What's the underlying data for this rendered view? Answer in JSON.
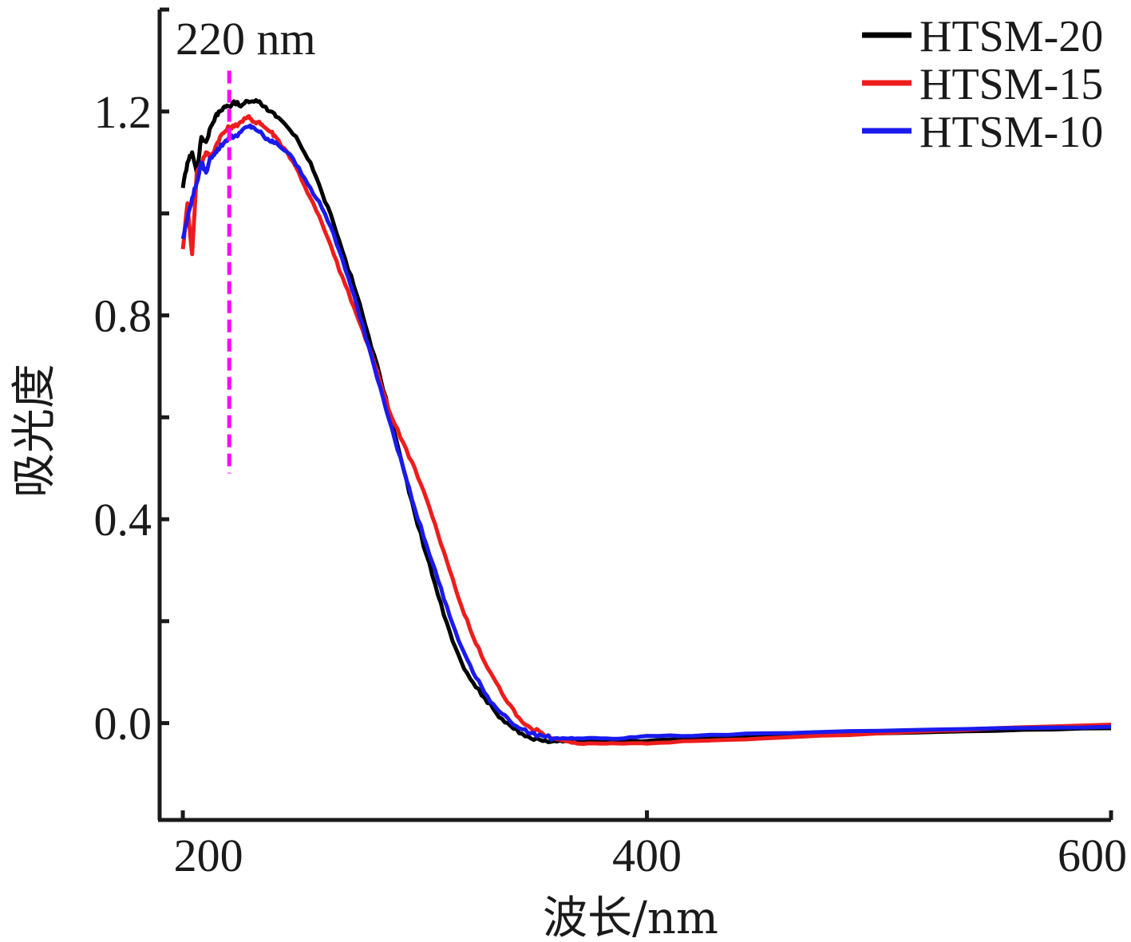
{
  "chart_data": {
    "type": "line",
    "title": "",
    "xlabel": "波长/nm",
    "ylabel": "吸光度",
    "xlim": [
      190,
      600
    ],
    "ylim": [
      -0.19,
      1.4
    ],
    "x_ticks": [
      200,
      400,
      600
    ],
    "x_minor_ticks": [],
    "y_ticks": [
      0.0,
      0.4,
      0.8,
      1.2
    ],
    "y_minor_ticks": [
      -0.2,
      0.2,
      0.6,
      1.0
    ],
    "x_tick_labels": [
      "200",
      "400",
      "600"
    ],
    "y_tick_labels": [
      "0.0",
      "0.4",
      "0.8",
      "1.2"
    ],
    "grid": false,
    "legend_position": "top-right",
    "annotations": [
      {
        "text": "220 nm",
        "x": 220,
        "y_start": 0.49,
        "y_end": 1.28,
        "color": "#ff00ff",
        "style": "dashed"
      }
    ],
    "series": [
      {
        "name": "HTSM-20",
        "color": "#000000",
        "x": [
          200,
          202,
          204,
          206,
          208,
          210,
          212,
          214,
          216,
          218,
          220,
          222,
          225,
          228,
          230,
          233,
          235,
          238,
          240,
          245,
          250,
          255,
          260,
          265,
          270,
          275,
          280,
          285,
          290,
          295,
          300,
          305,
          310,
          315,
          320,
          325,
          330,
          335,
          340,
          345,
          350,
          355,
          360,
          365,
          370,
          380,
          390,
          400,
          420,
          450,
          500,
          550,
          600
        ],
        "y": [
          1.05,
          1.1,
          1.12,
          1.08,
          1.15,
          1.14,
          1.17,
          1.19,
          1.2,
          1.21,
          1.21,
          1.22,
          1.21,
          1.22,
          1.22,
          1.22,
          1.21,
          1.2,
          1.19,
          1.17,
          1.14,
          1.1,
          1.04,
          0.98,
          0.91,
          0.84,
          0.76,
          0.68,
          0.59,
          0.5,
          0.41,
          0.33,
          0.25,
          0.18,
          0.12,
          0.08,
          0.05,
          0.02,
          0.0,
          -0.02,
          -0.03,
          -0.035,
          -0.035,
          -0.035,
          -0.035,
          -0.035,
          -0.035,
          -0.035,
          -0.03,
          -0.025,
          -0.02,
          -0.015,
          -0.01
        ]
      },
      {
        "name": "HTSM-15",
        "color": "#ee1c1c",
        "x": [
          200,
          202,
          204,
          206,
          208,
          210,
          212,
          214,
          216,
          218,
          220,
          222,
          225,
          228,
          230,
          233,
          235,
          238,
          240,
          245,
          250,
          255,
          260,
          265,
          270,
          275,
          280,
          285,
          290,
          295,
          300,
          305,
          310,
          315,
          320,
          325,
          330,
          335,
          340,
          345,
          350,
          355,
          360,
          365,
          370,
          380,
          390,
          400,
          420,
          450,
          500,
          550,
          600
        ],
        "y": [
          0.93,
          1.02,
          0.92,
          1.08,
          1.1,
          1.12,
          1.11,
          1.13,
          1.15,
          1.16,
          1.17,
          1.17,
          1.18,
          1.19,
          1.18,
          1.18,
          1.17,
          1.16,
          1.15,
          1.12,
          1.08,
          1.03,
          0.98,
          0.92,
          0.86,
          0.8,
          0.74,
          0.67,
          0.6,
          0.55,
          0.5,
          0.44,
          0.37,
          0.3,
          0.23,
          0.17,
          0.12,
          0.08,
          0.04,
          0.01,
          -0.01,
          -0.02,
          -0.03,
          -0.035,
          -0.04,
          -0.04,
          -0.04,
          -0.04,
          -0.035,
          -0.03,
          -0.02,
          -0.01,
          -0.003
        ]
      },
      {
        "name": "HTSM-10",
        "color": "#1a1aee",
        "x": [
          200,
          202,
          204,
          206,
          208,
          210,
          212,
          214,
          216,
          218,
          220,
          222,
          225,
          228,
          230,
          233,
          235,
          238,
          240,
          245,
          250,
          255,
          260,
          265,
          270,
          275,
          280,
          285,
          290,
          295,
          300,
          305,
          310,
          315,
          320,
          325,
          330,
          335,
          340,
          345,
          350,
          355,
          360,
          365,
          370,
          380,
          390,
          400,
          420,
          450,
          500,
          550,
          600
        ],
        "y": [
          0.95,
          0.99,
          1.03,
          1.06,
          1.1,
          1.08,
          1.11,
          1.12,
          1.13,
          1.14,
          1.15,
          1.15,
          1.16,
          1.17,
          1.17,
          1.16,
          1.15,
          1.14,
          1.14,
          1.12,
          1.09,
          1.05,
          1.01,
          0.96,
          0.89,
          0.82,
          0.74,
          0.66,
          0.58,
          0.5,
          0.42,
          0.35,
          0.28,
          0.21,
          0.15,
          0.1,
          0.06,
          0.03,
          0.01,
          -0.01,
          -0.02,
          -0.025,
          -0.03,
          -0.03,
          -0.03,
          -0.03,
          -0.03,
          -0.025,
          -0.025,
          -0.02,
          -0.015,
          -0.01,
          -0.007
        ]
      }
    ]
  }
}
